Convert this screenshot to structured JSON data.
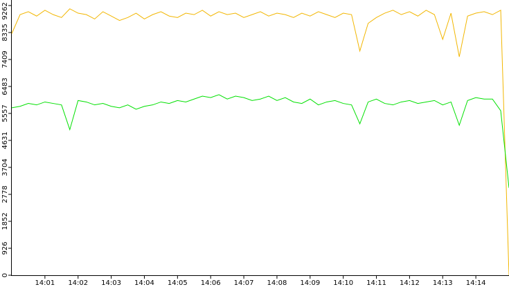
{
  "chart_data": {
    "type": "line",
    "x": [
      840,
      840.25,
      840.5,
      840.75,
      841,
      841.25,
      841.5,
      841.75,
      842,
      842.25,
      842.5,
      842.75,
      843,
      843.25,
      843.5,
      843.75,
      844,
      844.25,
      844.5,
      844.75,
      845,
      845.25,
      845.5,
      845.75,
      846,
      846.25,
      846.5,
      846.75,
      847,
      847.25,
      847.5,
      847.75,
      848,
      848.25,
      848.5,
      848.75,
      849,
      849.25,
      849.5,
      849.75,
      850,
      850.25,
      850.5,
      850.75,
      851,
      851.25,
      851.5,
      851.75,
      852,
      852.25,
      852.5,
      852.75,
      853,
      853.25,
      853.5,
      853.75,
      854,
      854.25,
      854.5,
      854.75,
      855
    ],
    "series": [
      {
        "color": "#f2b600",
        "values": [
          8300,
          8950,
          9050,
          8900,
          9100,
          8950,
          8850,
          9150,
          9000,
          8950,
          8800,
          9050,
          8900,
          8750,
          8850,
          9000,
          8800,
          8950,
          9050,
          8900,
          8850,
          9000,
          8950,
          9100,
          8900,
          9050,
          8950,
          9000,
          8850,
          8950,
          9050,
          8900,
          9000,
          8950,
          8850,
          9000,
          8900,
          9050,
          8950,
          8850,
          9000,
          8950,
          7700,
          8650,
          8850,
          9000,
          9100,
          8950,
          9050,
          8900,
          9100,
          8950,
          8100,
          9000,
          7500,
          8900,
          9000,
          9050,
          8950,
          9100,
          0
        ]
      },
      {
        "color": "#00e000",
        "values": [
          5750,
          5800,
          5900,
          5850,
          5950,
          5900,
          5850,
          5000,
          6000,
          5950,
          5850,
          5900,
          5800,
          5750,
          5850,
          5700,
          5800,
          5850,
          5950,
          5900,
          6000,
          5950,
          6050,
          6150,
          6100,
          6200,
          6050,
          6150,
          6100,
          6000,
          6050,
          6150,
          6000,
          6100,
          5950,
          5900,
          6050,
          5850,
          5950,
          6000,
          5900,
          5850,
          5200,
          5950,
          6050,
          5900,
          5850,
          5950,
          6000,
          5900,
          5950,
          6000,
          5850,
          5950,
          5150,
          6000,
          6100,
          6050,
          6050,
          5650,
          3000
        ]
      }
    ],
    "xlim": [
      840,
      855
    ],
    "xticks": [
      {
        "value": 841,
        "label": "14:01"
      },
      {
        "value": 842,
        "label": "14:02"
      },
      {
        "value": 843,
        "label": "14:03"
      },
      {
        "value": 844,
        "label": "14:04"
      },
      {
        "value": 845,
        "label": "14:05"
      },
      {
        "value": 846,
        "label": "14:06"
      },
      {
        "value": 847,
        "label": "14:07"
      },
      {
        "value": 848,
        "label": "14:08"
      },
      {
        "value": 849,
        "label": "14:09"
      },
      {
        "value": 850,
        "label": "14:10"
      },
      {
        "value": 851,
        "label": "14:11"
      },
      {
        "value": 852,
        "label": "14:12"
      },
      {
        "value": 853,
        "label": "14:13"
      },
      {
        "value": 854,
        "label": "14:14"
      }
    ],
    "ylim": [
      0,
      9262
    ],
    "yticks": [
      0,
      926,
      1852,
      2778,
      3704,
      4631,
      5557,
      6483,
      7409,
      8335,
      9262
    ]
  }
}
